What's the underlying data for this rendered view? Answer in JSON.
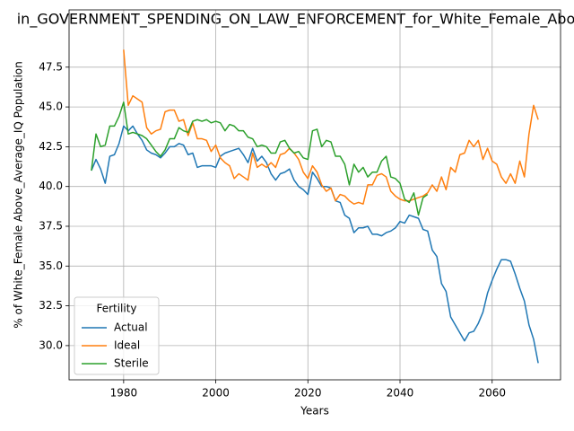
{
  "chart_data": {
    "type": "line",
    "title": "in_GOVERNMENT_SPENDING_ON_LAW_ENFORCEMENT_for_White_Female_Abo",
    "xlabel": "Years",
    "ylabel": "% of White_Female Above_Average_IQ Population",
    "x": [
      1973,
      1974,
      1975,
      1976,
      1977,
      1978,
      1979,
      1980,
      1981,
      1982,
      1983,
      1984,
      1985,
      1986,
      1987,
      1988,
      1989,
      1990,
      1991,
      1992,
      1993,
      1994,
      1995,
      1996,
      1997,
      1998,
      1999,
      2000,
      2001,
      2002,
      2003,
      2004,
      2005,
      2006,
      2007,
      2008,
      2009,
      2010,
      2011,
      2012,
      2013,
      2014,
      2015,
      2016,
      2017,
      2018,
      2019,
      2020,
      2021,
      2022,
      2023,
      2024,
      2025,
      2026,
      2027,
      2028,
      2029,
      2030,
      2031,
      2032,
      2033,
      2034,
      2035,
      2036,
      2037,
      2038,
      2039,
      2040,
      2041,
      2042,
      2043,
      2044,
      2045,
      2046,
      2047,
      2048,
      2049,
      2050,
      2051,
      2052,
      2053,
      2054,
      2055,
      2056,
      2057,
      2058,
      2059,
      2060,
      2061,
      2062,
      2063,
      2064,
      2065,
      2066,
      2067,
      2068,
      2069,
      2070
    ],
    "series": [
      {
        "name": "Actual",
        "color": "#1f77b4",
        "values": [
          41.0,
          41.7,
          41.1,
          40.2,
          41.9,
          42.0,
          42.7,
          43.8,
          43.5,
          43.8,
          43.3,
          42.9,
          42.3,
          42.1,
          42.0,
          41.8,
          42.1,
          42.5,
          42.5,
          42.7,
          42.6,
          42.0,
          42.1,
          41.2,
          41.3,
          41.3,
          41.3,
          41.2,
          41.9,
          42.1,
          42.2,
          42.3,
          42.4,
          42.0,
          41.5,
          42.4,
          41.6,
          41.9,
          41.5,
          40.8,
          40.4,
          40.8,
          40.9,
          41.1,
          40.4,
          40.0,
          39.8,
          39.5,
          40.9,
          40.5,
          40.0,
          40.0,
          39.9,
          39.1,
          39.0,
          38.2,
          38.0,
          37.1,
          37.4,
          37.4,
          37.5,
          37.0,
          37.0,
          36.9,
          37.1,
          37.2,
          37.4,
          37.8,
          37.7,
          38.2,
          38.1,
          38.0,
          37.3,
          37.2,
          36.0,
          35.6,
          33.9,
          33.4,
          31.8,
          31.3,
          30.8,
          30.3,
          30.8,
          30.9,
          31.4,
          32.1,
          33.3,
          34.1,
          34.8,
          35.4,
          35.4,
          35.3,
          34.5,
          33.6,
          32.8,
          31.3,
          30.4,
          28.9
        ]
      },
      {
        "name": "Ideal",
        "color": "#ff7f0e",
        "values": [
          null,
          null,
          null,
          null,
          null,
          null,
          null,
          48.6,
          45.1,
          45.7,
          45.5,
          45.3,
          43.7,
          43.3,
          43.5,
          43.6,
          44.7,
          44.8,
          44.8,
          44.1,
          44.2,
          43.2,
          44.0,
          43.0,
          43.0,
          42.9,
          42.2,
          42.6,
          41.8,
          41.5,
          41.3,
          40.5,
          40.8,
          40.6,
          40.4,
          42.1,
          41.2,
          41.4,
          41.2,
          41.5,
          41.2,
          42.0,
          42.1,
          42.4,
          42.1,
          41.7,
          40.9,
          40.5,
          41.3,
          40.9,
          40.1,
          39.7,
          39.9,
          39.1,
          39.5,
          39.4,
          39.1,
          38.9,
          39.0,
          38.9,
          40.1,
          40.1,
          40.7,
          40.8,
          40.6,
          39.7,
          39.4,
          39.2,
          39.1,
          39.1,
          39.2,
          39.3,
          39.4,
          39.6,
          40.1,
          39.7,
          40.6,
          39.8,
          41.2,
          40.9,
          42.0,
          42.1,
          42.9,
          42.5,
          42.9,
          41.7,
          42.4,
          41.6,
          41.4,
          40.6,
          40.2,
          40.8,
          40.2,
          41.6,
          40.6,
          43.3,
          45.1,
          44.2
        ]
      },
      {
        "name": "Sterile",
        "color": "#2ca02c",
        "values": [
          41.0,
          43.3,
          42.5,
          42.6,
          43.8,
          43.8,
          44.4,
          45.3,
          43.3,
          43.4,
          43.3,
          43.2,
          43.0,
          42.6,
          42.2,
          41.9,
          42.3,
          43.0,
          43.0,
          43.7,
          43.5,
          43.4,
          44.1,
          44.2,
          44.1,
          44.2,
          44.0,
          44.1,
          44.0,
          43.5,
          43.9,
          43.8,
          43.5,
          43.5,
          43.1,
          43.0,
          42.5,
          42.6,
          42.5,
          42.1,
          42.1,
          42.8,
          42.9,
          42.4,
          42.1,
          42.2,
          41.8,
          41.7,
          43.5,
          43.6,
          42.5,
          42.9,
          42.8,
          41.9,
          41.9,
          41.4,
          40.1,
          41.4,
          40.9,
          41.2,
          40.6,
          40.9,
          40.9,
          41.6,
          41.9,
          40.6,
          40.5,
          40.2,
          39.2,
          39.0,
          39.6,
          38.2,
          39.3,
          39.5,
          null,
          null,
          null,
          null,
          null,
          null,
          null,
          null,
          null,
          null,
          null,
          null,
          null,
          null,
          null,
          null,
          null,
          null,
          null,
          null,
          null,
          null,
          null,
          null
        ]
      }
    ],
    "xlim": [
      1968.15,
      2074.85
    ],
    "ylim": [
      27.85,
      51.1
    ],
    "xticks": [
      1980,
      2000,
      2020,
      2040,
      2060
    ],
    "yticks": [
      {
        "value": 30,
        "label": "30.0"
      },
      32.5,
      {
        "value": 35,
        "label": "35.0"
      },
      37.5,
      {
        "value": 40,
        "label": "40.0"
      },
      42.5,
      {
        "value": 45,
        "label": "45.0"
      },
      47.5
    ],
    "grid": true,
    "legend_title": "Fertility",
    "legend_loc": "lower left"
  }
}
